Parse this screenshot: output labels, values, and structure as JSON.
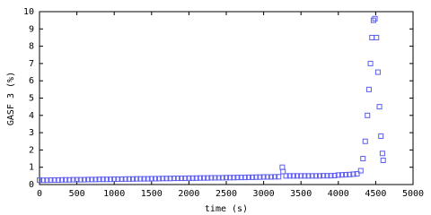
{
  "chart_data": {
    "type": "scatter",
    "xlabel": "time (s)",
    "ylabel": "GASF 3 (%)",
    "xlim": [
      0,
      5000
    ],
    "ylim": [
      0,
      10
    ],
    "xticks": [
      0,
      500,
      1000,
      1500,
      2000,
      2500,
      3000,
      3500,
      4000,
      4500,
      5000
    ],
    "yticks": [
      0,
      1,
      2,
      3,
      4,
      5,
      6,
      7,
      8,
      9,
      10
    ],
    "grid": false,
    "marker": "square",
    "series": [
      {
        "color": "#5c5cf0",
        "x": [
          0,
          50,
          100,
          150,
          200,
          250,
          300,
          350,
          400,
          450,
          500,
          550,
          600,
          650,
          700,
          750,
          800,
          850,
          900,
          950,
          1000,
          1050,
          1100,
          1150,
          1200,
          1250,
          1300,
          1350,
          1400,
          1450,
          1500,
          1550,
          1600,
          1650,
          1700,
          1750,
          1800,
          1850,
          1900,
          1950,
          2000,
          2050,
          2100,
          2150,
          2200,
          2250,
          2300,
          2350,
          2400,
          2450,
          2500,
          2550,
          2600,
          2650,
          2700,
          2750,
          2800,
          2850,
          2900,
          2950,
          3000,
          3050,
          3100,
          3150,
          3200,
          3250,
          3260,
          3300,
          3350,
          3400,
          3450,
          3500,
          3550,
          3600,
          3650,
          3700,
          3750,
          3800,
          3850,
          3900,
          3950,
          4000,
          4050,
          4100,
          4150,
          4200,
          4250,
          4300,
          4330,
          4360,
          4390,
          4410,
          4430,
          4450,
          4470,
          4490,
          4510,
          4530,
          4550,
          4570,
          4590,
          4600
        ],
        "values": [
          0.25,
          0.25,
          0.25,
          0.26,
          0.26,
          0.26,
          0.27,
          0.27,
          0.27,
          0.28,
          0.28,
          0.28,
          0.28,
          0.29,
          0.29,
          0.29,
          0.3,
          0.3,
          0.3,
          0.3,
          0.31,
          0.31,
          0.31,
          0.32,
          0.32,
          0.32,
          0.33,
          0.33,
          0.33,
          0.33,
          0.34,
          0.34,
          0.34,
          0.35,
          0.35,
          0.35,
          0.36,
          0.36,
          0.36,
          0.36,
          0.37,
          0.37,
          0.37,
          0.38,
          0.38,
          0.38,
          0.39,
          0.39,
          0.39,
          0.39,
          0.4,
          0.4,
          0.4,
          0.41,
          0.41,
          0.41,
          0.42,
          0.42,
          0.43,
          0.43,
          0.44,
          0.44,
          0.44,
          0.45,
          0.45,
          1.0,
          0.75,
          0.5,
          0.5,
          0.5,
          0.5,
          0.5,
          0.5,
          0.5,
          0.5,
          0.5,
          0.5,
          0.51,
          0.51,
          0.51,
          0.52,
          0.55,
          0.56,
          0.57,
          0.58,
          0.6,
          0.62,
          0.8,
          1.5,
          2.5,
          4,
          5.5,
          7,
          8.5,
          9.5,
          9.6,
          8.5,
          6.5,
          4.5,
          2.8,
          1.8,
          1.4
        ]
      }
    ]
  }
}
